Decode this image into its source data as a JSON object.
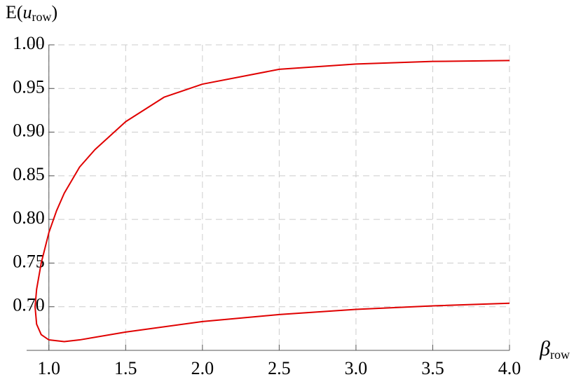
{
  "chart_data": {
    "type": "line",
    "y_label": {
      "pre": "E(",
      "var": "u",
      "sub": "row",
      "post": ")"
    },
    "x_label": {
      "var": "β",
      "sub": "row"
    },
    "series": [
      {
        "color": "#e00000",
        "x": [
          4.0,
          3.5,
          3.0,
          2.5,
          2.0,
          1.75,
          1.5,
          1.3,
          1.2,
          1.1,
          1.05,
          1.0,
          0.95,
          0.92,
          0.91,
          0.92,
          0.95,
          1.0,
          1.1,
          1.2,
          1.5,
          2.0,
          2.5,
          3.0,
          3.5,
          4.0
        ],
        "values": [
          0.982,
          0.981,
          0.978,
          0.972,
          0.955,
          0.94,
          0.912,
          0.88,
          0.86,
          0.83,
          0.81,
          0.785,
          0.75,
          0.72,
          0.7,
          0.68,
          0.668,
          0.662,
          0.66,
          0.662,
          0.671,
          0.683,
          0.691,
          0.697,
          0.701,
          0.704
        ]
      }
    ],
    "xlim": [
      0.855,
      4.0
    ],
    "ylim": [
      0.65,
      1.0
    ],
    "y_axis_crossing": 1,
    "xticks": [
      {
        "value": 1,
        "label": "1.0"
      },
      {
        "value": 1.5,
        "label": "1.5"
      },
      {
        "value": 2,
        "label": "2.0"
      },
      {
        "value": 2.5,
        "label": "2.5"
      },
      {
        "value": 3,
        "label": "3.0"
      },
      {
        "value": 3.5,
        "label": "3.5"
      },
      {
        "value": 4,
        "label": "4.0"
      }
    ],
    "yticks": [
      {
        "value": 0.7,
        "label": "0.70"
      },
      {
        "value": 0.75,
        "label": "0.75"
      },
      {
        "value": 0.8,
        "label": "0.80"
      },
      {
        "value": 0.85,
        "label": "0.85"
      },
      {
        "value": 0.9,
        "label": "0.90"
      },
      {
        "value": 0.95,
        "label": "0.95"
      },
      {
        "value": 1,
        "label": "1.00"
      }
    ],
    "grid": true
  }
}
